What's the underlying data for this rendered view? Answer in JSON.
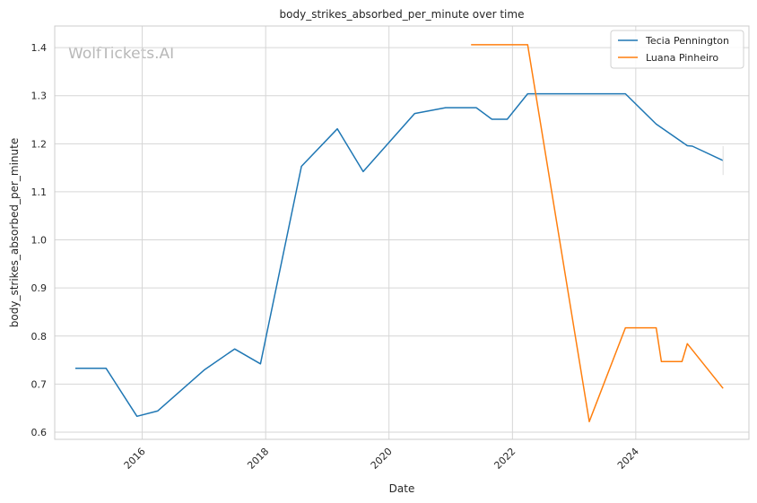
{
  "chart_data": {
    "type": "line",
    "title": "body_strikes_absorbed_per_minute over time",
    "xlabel": "Date",
    "ylabel": "body_strikes_absorbed_per_minute",
    "watermark": "WolfTickets.AI",
    "x_type": "date",
    "xlim": [
      "2014-08-01",
      "2025-11-01"
    ],
    "ylim": [
      0.585,
      1.445
    ],
    "x_ticks": [
      "2016-01-01",
      "2018-01-01",
      "2020-01-01",
      "2022-01-01",
      "2024-01-01"
    ],
    "x_tick_labels": [
      "2016",
      "2018",
      "2020",
      "2022",
      "2024"
    ],
    "y_ticks": [
      0.6,
      0.7,
      0.8,
      0.9,
      1.0,
      1.1,
      1.2,
      1.3,
      1.4
    ],
    "y_tick_labels": [
      "0.6",
      "0.7",
      "0.8",
      "0.9",
      "1.0",
      "1.1",
      "1.2",
      "1.3",
      "1.4"
    ],
    "grid": true,
    "legend_position": "top-right",
    "series": [
      {
        "name": "Tecia Pennington",
        "color": "#1f77b4",
        "x": [
          "2014-12-01",
          "2015-06-01",
          "2015-12-01",
          "2016-04-01",
          "2017-01-01",
          "2017-07-01",
          "2017-12-01",
          "2018-08-01",
          "2019-03-01",
          "2019-08-01",
          "2020-06-01",
          "2020-12-01",
          "2021-06-01",
          "2021-09-01",
          "2021-12-01",
          "2022-04-01",
          "2023-11-01",
          "2024-05-01",
          "2024-11-01",
          "2024-12-01",
          "2025-06-01"
        ],
        "y": [
          0.733,
          0.733,
          0.633,
          0.644,
          0.729,
          0.773,
          0.742,
          1.153,
          1.231,
          1.142,
          1.263,
          1.275,
          1.275,
          1.251,
          1.251,
          1.304,
          1.304,
          1.241,
          1.196,
          1.195,
          1.165
        ]
      },
      {
        "name": "Luana Pinheiro",
        "color": "#ff7f0e",
        "x": [
          "2021-05-01",
          "2022-04-01",
          "2023-04-01",
          "2023-11-01",
          "2024-05-01",
          "2024-06-01",
          "2024-10-01",
          "2024-11-01",
          "2025-06-01"
        ],
        "y": [
          1.406,
          1.406,
          0.622,
          0.817,
          0.817,
          0.747,
          0.747,
          0.784,
          0.691
        ]
      }
    ]
  }
}
